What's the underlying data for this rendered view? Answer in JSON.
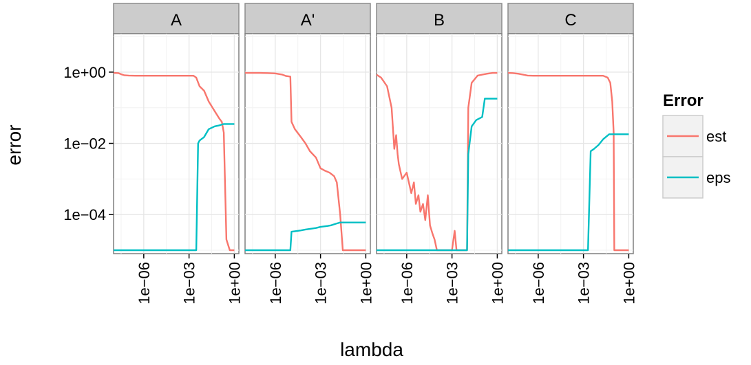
{
  "chart_data": {
    "type": "line",
    "xlabel": "lambda",
    "ylabel": "error",
    "x_scale": "log10",
    "y_scale": "log10",
    "xlim": [
      1e-08,
      2
    ],
    "ylim": [
      8e-06,
      12
    ],
    "x_ticks": [
      {
        "value": 1e-06,
        "label": "1e−06"
      },
      {
        "value": 0.001,
        "label": "1e−03"
      },
      {
        "value": 1,
        "label": "1e+00"
      }
    ],
    "y_ticks": [
      {
        "value": 1,
        "label": "1e+00"
      },
      {
        "value": 0.01,
        "label": "1e−02"
      },
      {
        "value": 0.0001,
        "label": "1e−04"
      }
    ],
    "grid": true,
    "legend": {
      "title": "Error",
      "position": "right",
      "entries": [
        {
          "label": "est",
          "color": "#F8766D"
        },
        {
          "label": "eps",
          "color": "#00BFC4"
        }
      ]
    },
    "panels": [
      {
        "label": "A",
        "series": [
          {
            "name": "est",
            "color": "#F8766D",
            "x": [
              1e-08,
              2e-08,
              3e-08,
              5e-08,
              1e-07,
              3e-07,
              1e-06,
              1e-05,
              0.0001,
              0.001,
              0.002,
              0.003,
              0.005,
              0.01,
              0.02,
              0.05,
              0.1,
              0.15,
              0.2,
              0.3,
              0.5,
              1
            ],
            "y": [
              0.95,
              0.94,
              0.88,
              0.82,
              0.8,
              0.79,
              0.79,
              0.79,
              0.79,
              0.79,
              0.79,
              0.7,
              0.4,
              0.3,
              0.15,
              0.08,
              0.05,
              0.04,
              0.02,
              2e-05,
              1e-05,
              1e-05
            ]
          },
          {
            "name": "eps",
            "color": "#00BFC4",
            "x": [
              1e-08,
              1e-06,
              0.0001,
              0.002,
              0.003,
              0.004,
              0.005,
              0.01,
              0.02,
              0.05,
              0.1,
              0.2,
              0.5,
              1
            ],
            "y": [
              1e-05,
              1e-05,
              1e-05,
              1e-05,
              1e-05,
              0.01,
              0.012,
              0.015,
              0.025,
              0.03,
              0.032,
              0.035,
              0.035,
              0.035
            ]
          }
        ]
      },
      {
        "label": "A'",
        "series": [
          {
            "name": "est",
            "color": "#F8766D",
            "x": [
              1e-08,
              1e-07,
              3e-07,
              1e-06,
              3e-06,
              5e-06,
              1e-05,
              1.2e-05,
              2e-05,
              5e-05,
              0.0001,
              0.0002,
              0.0005,
              0.001,
              0.002,
              0.004,
              0.008,
              0.012,
              0.02,
              0.03,
              0.05,
              0.1,
              0.2,
              0.5,
              1
            ],
            "y": [
              0.95,
              0.95,
              0.94,
              0.92,
              0.85,
              0.78,
              0.75,
              0.04,
              0.025,
              0.015,
              0.01,
              0.006,
              0.004,
              0.002,
              0.0017,
              0.0015,
              0.0012,
              0.0008,
              0.0001,
              1e-05,
              1e-05,
              1e-05,
              1e-05,
              1e-05,
              1e-05
            ]
          },
          {
            "name": "eps",
            "color": "#00BFC4",
            "x": [
              1e-08,
              1e-06,
              1e-05,
              1.2e-05,
              2e-05,
              5e-05,
              0.0001,
              0.0005,
              0.001,
              0.003,
              0.005,
              0.01,
              0.02,
              0.03,
              0.1,
              0.5,
              1
            ],
            "y": [
              1e-05,
              1e-05,
              1e-05,
              3.3e-05,
              3.4e-05,
              3.6e-05,
              3.8e-05,
              4.2e-05,
              4.5e-05,
              4.8e-05,
              5e-05,
              5.5e-05,
              6e-05,
              6e-05,
              6e-05,
              6e-05,
              6e-05
            ]
          }
        ]
      },
      {
        "label": "B",
        "series": [
          {
            "name": "est",
            "color": "#F8766D",
            "x": [
              1e-08,
              2e-08,
              5e-08,
              1e-07,
              1.5e-07,
              2e-07,
              2.5e-07,
              3e-07,
              5e-07,
              1e-06,
              2e-06,
              3e-06,
              4e-06,
              6e-06,
              8e-06,
              1.2e-05,
              1.7e-05,
              2.5e-05,
              3.5e-05,
              5e-05,
              7e-05,
              0.0001,
              0.0002,
              0.0004,
              0.0007,
              0.001,
              0.0015,
              0.002,
              0.0025,
              0.003,
              0.005,
              0.008,
              0.01,
              0.012,
              0.02,
              0.05,
              0.1,
              0.2,
              0.5,
              1
            ],
            "y": [
              0.85,
              0.7,
              0.4,
              0.1,
              0.007,
              0.017,
              0.005,
              0.0026,
              0.001,
              0.0015,
              0.0004,
              0.0008,
              0.0002,
              0.00035,
              0.00012,
              0.0002,
              7e-05,
              0.00035,
              5e-05,
              3e-05,
              2e-05,
              1e-05,
              1e-05,
              1e-05,
              1e-05,
              1e-05,
              3.5e-05,
              1e-05,
              1e-05,
              1e-05,
              1e-05,
              1e-05,
              1e-05,
              0.1,
              0.5,
              0.8,
              0.85,
              0.9,
              0.95,
              0.95
            ]
          },
          {
            "name": "eps",
            "color": "#00BFC4",
            "x": [
              1e-08,
              1e-06,
              0.0001,
              0.001,
              0.005,
              0.01,
              0.012,
              0.02,
              0.04,
              0.1,
              0.15,
              0.2,
              0.5,
              1
            ],
            "y": [
              1e-05,
              1e-05,
              1e-05,
              1e-05,
              1e-05,
              1e-05,
              0.005,
              0.03,
              0.045,
              0.055,
              0.18,
              0.18,
              0.18,
              0.18
            ]
          }
        ]
      },
      {
        "label": "C",
        "series": [
          {
            "name": "est",
            "color": "#F8766D",
            "x": [
              1e-08,
              2e-08,
              5e-08,
              1e-07,
              2e-07,
              5e-07,
              1e-06,
              1e-05,
              0.0001,
              0.001,
              0.01,
              0.02,
              0.04,
              0.06,
              0.08,
              0.1,
              0.11,
              0.13,
              0.2,
              0.5,
              1
            ],
            "y": [
              0.95,
              0.94,
              0.9,
              0.85,
              0.8,
              0.79,
              0.79,
              0.79,
              0.79,
              0.79,
              0.79,
              0.79,
              0.7,
              0.5,
              0.15,
              0.02,
              1e-05,
              1e-05,
              1e-05,
              1e-05,
              1e-05
            ]
          },
          {
            "name": "eps",
            "color": "#00BFC4",
            "x": [
              1e-08,
              1e-06,
              0.0001,
              0.002,
              0.003,
              0.005,
              0.01,
              0.02,
              0.05,
              0.1,
              0.2,
              0.5,
              1
            ],
            "y": [
              1e-05,
              1e-05,
              1e-05,
              1e-05,
              0.006,
              0.007,
              0.009,
              0.013,
              0.018,
              0.018,
              0.018,
              0.018,
              0.018
            ]
          }
        ]
      }
    ]
  }
}
